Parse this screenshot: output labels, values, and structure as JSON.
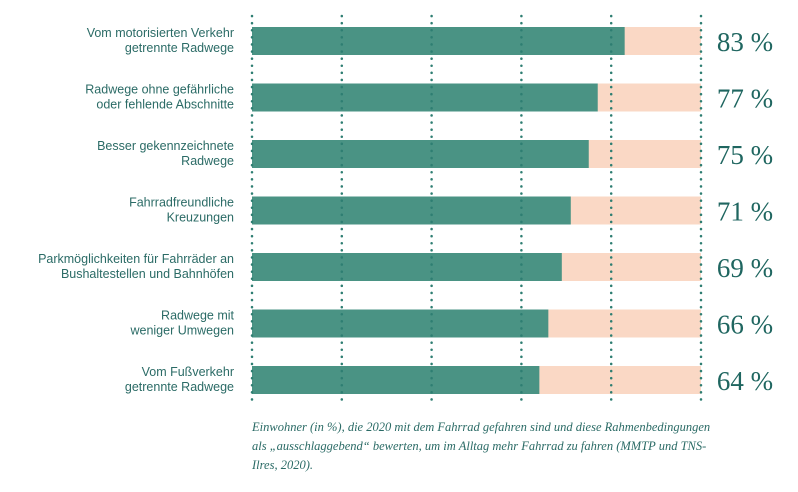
{
  "chart_data": {
    "type": "bar",
    "orientation": "horizontal",
    "stacked": true,
    "categories": [
      [
        "Vom motorisierten Verkehr",
        "getrennte Radwege"
      ],
      [
        "Radwege ohne gefährliche",
        "oder fehlende Abschnitte"
      ],
      [
        "Besser gekennzeichnete",
        "Radwege"
      ],
      [
        "Fahrradfreundliche",
        "Kreuzungen"
      ],
      [
        "Parkmöglichkeiten für Fahrräder an",
        "Bushaltestellen und Bahnhöfen"
      ],
      [
        "Radwege mit",
        "weniger Umwegen"
      ],
      [
        "Vom Fußverkehr",
        "getrennte Radwege"
      ]
    ],
    "values": [
      83,
      77,
      75,
      71,
      69,
      66,
      64
    ],
    "value_labels": [
      "83 %",
      "77 %",
      "75 %",
      "71 %",
      "69 %",
      "66 %",
      "64 %"
    ],
    "xlim": [
      0,
      100
    ],
    "colors": {
      "value": "#4a9384",
      "remainder": "#fad8c5",
      "grid": "#2e7e72"
    },
    "grid": "dotted vertical lines",
    "legend": "none"
  },
  "caption": "Einwohner (in %), die 2020 mit dem Fahrrad gefahren sind und diese Rahmenbedingungen als „ausschlaggebend“ bewerten, um im Alltag mehr Fahrrad zu fahren (MMTP und TNS-Ilres, 2020)."
}
